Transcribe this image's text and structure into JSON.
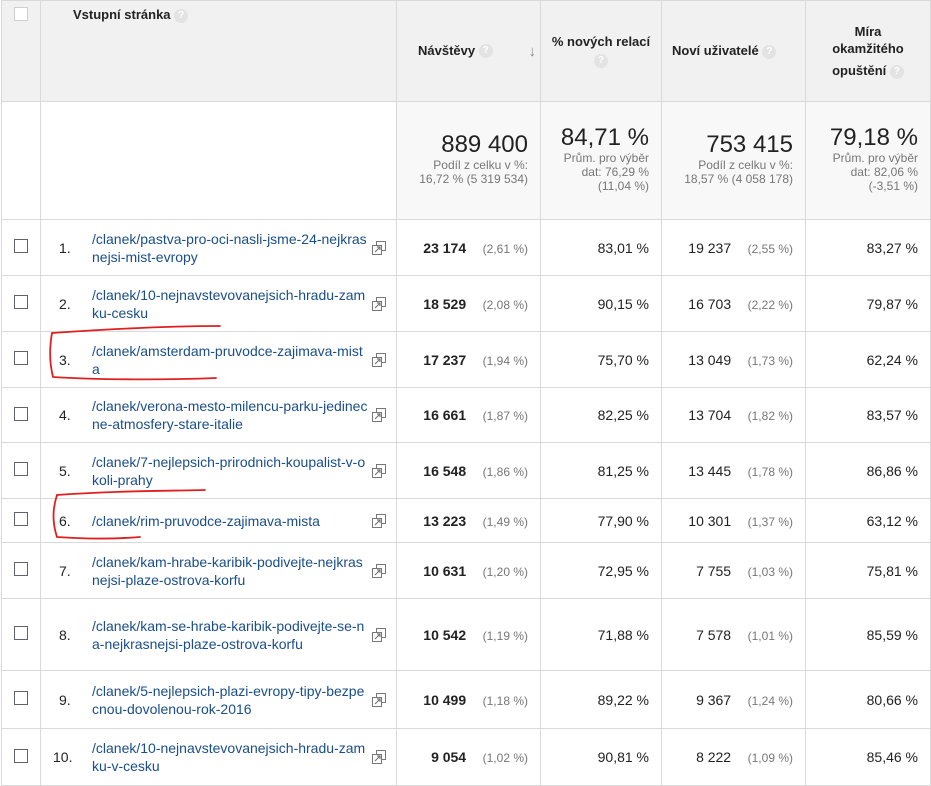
{
  "header": {
    "landing_page": "Vstupní stránka",
    "visits": "Návštěvy",
    "new_sessions": "% nových relací",
    "new_users": "Noví uživatelé",
    "bounce_line1": "Míra",
    "bounce_line2": "okamžitého",
    "bounce_line3": "opuštění",
    "help_glyph": "?",
    "sort_glyph": "↓"
  },
  "summary": {
    "visits": {
      "value": "889 400",
      "line1": "Podíl z celku v %:",
      "line2": "16,72 % (5 319 534)"
    },
    "new_sessions": {
      "value": "84,71 %",
      "line1": "Prům. pro výběr",
      "line2": "dat: 76,29 %",
      "line3": "(11,04 %)"
    },
    "new_users": {
      "value": "753 415",
      "line1": "Podíl z celku v %:",
      "line2": "18,57 % (4 058 178)"
    },
    "bounce": {
      "value": "79,18 %",
      "line1": "Prům. pro výběr",
      "line2": "dat: 82,06 %",
      "line3": "(-3,51 %)"
    }
  },
  "rows": [
    {
      "rank": "1.",
      "page": "/clanek/pastva-pro-oci-nasli-jsme-24-nejkrasnejsi-mist-evropy",
      "visits": "23 174",
      "visits_pct": "(2,61 %)",
      "new_sessions": "83,01 %",
      "new_users": "19 237",
      "new_users_pct": "(2,55 %)",
      "bounce": "83,27 %"
    },
    {
      "rank": "2.",
      "page": "/clanek/10-nejnavstevovanejsich-hradu-zamku-cesku",
      "visits": "18 529",
      "visits_pct": "(2,08 %)",
      "new_sessions": "90,15 %",
      "new_users": "16 703",
      "new_users_pct": "(2,22 %)",
      "bounce": "79,87 %"
    },
    {
      "rank": "3.",
      "page": "/clanek/amsterdam-pruvodce-zajimava-mista",
      "visits": "17 237",
      "visits_pct": "(1,94 %)",
      "new_sessions": "75,70 %",
      "new_users": "13 049",
      "new_users_pct": "(1,73 %)",
      "bounce": "62,24 %"
    },
    {
      "rank": "4.",
      "page": "/clanek/verona-mesto-milencu-parku-jedinecne-atmosfery-stare-italie",
      "visits": "16 661",
      "visits_pct": "(1,87 %)",
      "new_sessions": "82,25 %",
      "new_users": "13 704",
      "new_users_pct": "(1,82 %)",
      "bounce": "83,57 %"
    },
    {
      "rank": "5.",
      "page": "/clanek/7-nejlepsich-prirodnich-koupalist-v-okoli-prahy",
      "visits": "16 548",
      "visits_pct": "(1,86 %)",
      "new_sessions": "81,25 %",
      "new_users": "13 445",
      "new_users_pct": "(1,78 %)",
      "bounce": "86,86 %"
    },
    {
      "rank": "6.",
      "page": "/clanek/rim-pruvodce-zajimava-mista",
      "visits": "13 223",
      "visits_pct": "(1,49 %)",
      "new_sessions": "77,90 %",
      "new_users": "10 301",
      "new_users_pct": "(1,37 %)",
      "bounce": "63,12 %"
    },
    {
      "rank": "7.",
      "page": "/clanek/kam-hrabe-karibik-podivejte-nejkrasnejsi-plaze-ostrova-korfu",
      "visits": "10 631",
      "visits_pct": "(1,20 %)",
      "new_sessions": "72,95 %",
      "new_users": "7 755",
      "new_users_pct": "(1,03 %)",
      "bounce": "75,81 %"
    },
    {
      "rank": "8.",
      "page": "/clanek/kam-se-hrabe-karibik-podivejte-se-na-nejkrasnejsi-plaze-ostrova-korfu",
      "visits": "10 542",
      "visits_pct": "(1,19 %)",
      "new_sessions": "71,88 %",
      "new_users": "7 578",
      "new_users_pct": "(1,01 %)",
      "bounce": "85,59 %"
    },
    {
      "rank": "9.",
      "page": "/clanek/5-nejlepsich-plazi-evropy-tipy-bezpecnou-dovolenou-rok-2016",
      "visits": "10 499",
      "visits_pct": "(1,18 %)",
      "new_sessions": "89,22 %",
      "new_users": "9 367",
      "new_users_pct": "(1,24 %)",
      "bounce": "80,66 %"
    },
    {
      "rank": "10.",
      "page": "/clanek/10-nejnavstevovanejsich-hradu-zamku-v-cesku",
      "visits": "9 054",
      "visits_pct": "(1,02 %)",
      "new_sessions": "90,81 %",
      "new_users": "8 222",
      "new_users_pct": "(1,09 %)",
      "bounce": "85,46 %"
    }
  ],
  "colors": {
    "link": "#1a4e8a",
    "annotation": "#e02020",
    "header_bg": "#f1f1f1",
    "border": "#d9d9d9"
  },
  "icons": {
    "row_action": "open-in-new-window-icon",
    "sort": "sort-descending-arrow-icon"
  }
}
